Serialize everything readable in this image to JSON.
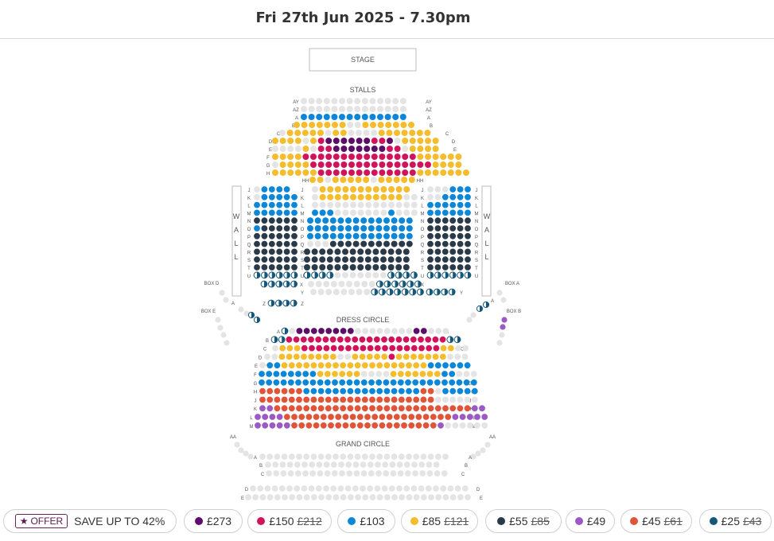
{
  "header": {
    "title": "Fri 27th Jun 2025 - 7.30pm"
  },
  "colors": {
    "unavailable": "#e4e4e4",
    "p273": "#5c0d68",
    "p150": "#d1135b",
    "p103": "#0c87d8",
    "p85": "#f5bd2e",
    "p55": "#2b3a48",
    "p49": "#9b59c6",
    "p45": "#e05539",
    "p25": "#15577a"
  },
  "map": {
    "stage_label": "STAGE",
    "stalls_label": "STALLS",
    "dress_circle_label": "DRESS CIRCLE",
    "grand_circle_label": "GRAND CIRCLE",
    "wall_label": [
      "W",
      "A",
      "L",
      "L"
    ],
    "box_d": "BOX D",
    "box_e": "BOX E",
    "box_a": "BOX A",
    "box_b": "BOX B",
    "stalls_rows_top": [
      "AY",
      "AZ",
      "A",
      "B",
      "C",
      "D",
      "E",
      "F",
      "G",
      "H",
      "HH"
    ],
    "stalls_rows_mid": [
      "J",
      "K",
      "L",
      "M",
      "N",
      "O",
      "P",
      "Q",
      "R",
      "S",
      "T",
      "U"
    ],
    "stalls_rows_low": [
      "X",
      "Y"
    ],
    "stalls_row_z": "Z",
    "dress_rows": [
      "A",
      "B",
      "C",
      "D",
      "E",
      "F",
      "G",
      "H",
      "J",
      "K",
      "L",
      "M"
    ],
    "grand_rows": [
      "A",
      "B",
      "C",
      "D",
      "E"
    ],
    "aa_label": "AA",
    "a_label": "A"
  },
  "legend": {
    "offer_badge": "OFFER",
    "offer_text": "SAVE UP TO 42%",
    "prices": [
      {
        "label": "£273",
        "was": "",
        "color": "#5c0d68"
      },
      {
        "label": "£150",
        "was": "£212",
        "color": "#d1135b"
      },
      {
        "label": "£103",
        "was": "",
        "color": "#0c87d8"
      },
      {
        "label": "£85",
        "was": "£121",
        "color": "#f5bd2e"
      },
      {
        "label": "£55",
        "was": "£85",
        "color": "#2b3a48"
      },
      {
        "label": "£49",
        "was": "",
        "color": "#9b59c6"
      },
      {
        "label": "£45",
        "was": "£61",
        "color": "#e05539"
      },
      {
        "label": "£25",
        "was": "£43",
        "color": "#15577a"
      }
    ]
  }
}
